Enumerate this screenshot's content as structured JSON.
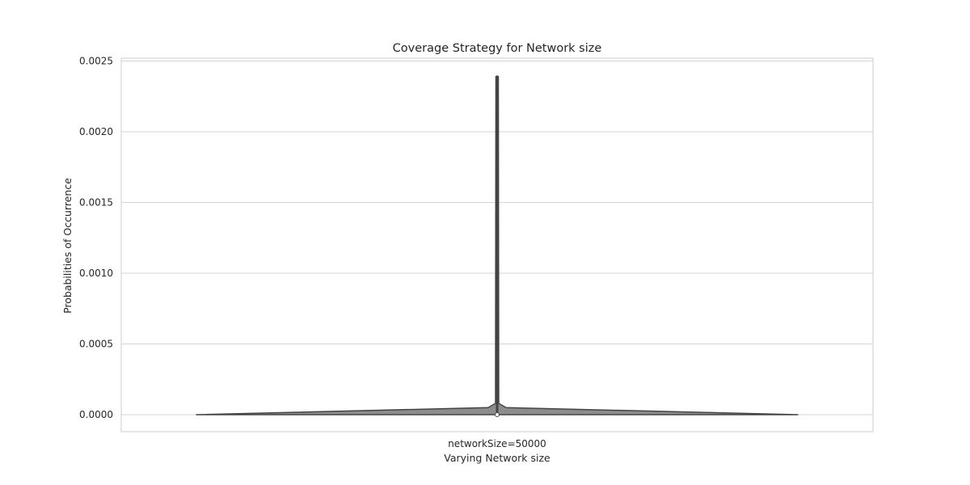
{
  "chart_data": {
    "type": "violin",
    "title": "Coverage Strategy for Network size",
    "xlabel": "Varying Network size",
    "ylabel": "Probabilities of Occurrence",
    "categories": [
      "networkSize=50000"
    ],
    "ylim": [
      -0.00012,
      0.00252
    ],
    "yticks": [
      {
        "value": 0.0,
        "label": "0.0000"
      },
      {
        "value": 0.0005,
        "label": "0.0005"
      },
      {
        "value": 0.001,
        "label": "0.0010"
      },
      {
        "value": 0.0015,
        "label": "0.0015"
      },
      {
        "value": 0.002,
        "label": "0.0020"
      },
      {
        "value": 0.0025,
        "label": "0.0025"
      }
    ],
    "grid": "horizontal",
    "violin": {
      "category": "networkSize=50000",
      "min": 0.0,
      "max": 0.00239,
      "median": 0.0,
      "fill_color": "#8c8c8c",
      "edge_color": "#444444",
      "bulge_points": [
        0.001,
        0.0012,
        0.0014,
        0.0016
      ]
    },
    "colors": {
      "grid": "#d5d5d5",
      "frame": "#cccccc",
      "text": "#262626"
    }
  }
}
